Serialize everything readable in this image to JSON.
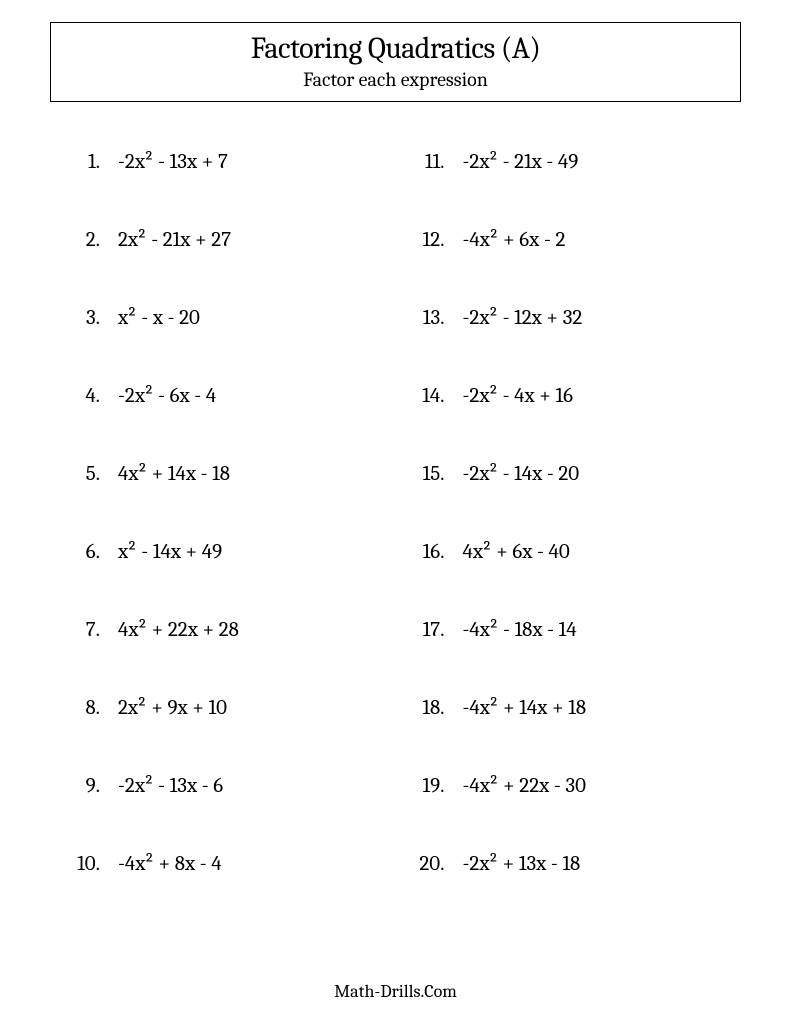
{
  "header": {
    "title": "Factoring Quadratics (A)",
    "subtitle": "Factor each expression"
  },
  "worksheet": {
    "font_family": "Cambria, Georgia, serif",
    "title_fontsize": 30,
    "subtitle_fontsize": 20,
    "problem_fontsize": 21,
    "text_color": "#000000",
    "background_color": "#ffffff",
    "border_color": "#000000",
    "columns": 2,
    "rows_per_column": 10,
    "problems_left": [
      {
        "num": "1.",
        "expr": "-2x² - 13x + 7"
      },
      {
        "num": "2.",
        "expr": "2x² - 21x + 27"
      },
      {
        "num": "3.",
        "expr": "x² - x - 20"
      },
      {
        "num": "4.",
        "expr": "-2x² - 6x - 4"
      },
      {
        "num": "5.",
        "expr": "4x² + 14x - 18"
      },
      {
        "num": "6.",
        "expr": "x² - 14x + 49"
      },
      {
        "num": "7.",
        "expr": "4x² + 22x + 28"
      },
      {
        "num": "8.",
        "expr": "2x² + 9x + 10"
      },
      {
        "num": "9.",
        "expr": "-2x² - 13x - 6"
      },
      {
        "num": "10.",
        "expr": "-4x² + 8x - 4"
      }
    ],
    "problems_right": [
      {
        "num": "11.",
        "expr": "-2x² - 21x - 49"
      },
      {
        "num": "12.",
        "expr": "-4x² + 6x - 2"
      },
      {
        "num": "13.",
        "expr": "-2x² - 12x + 32"
      },
      {
        "num": "14.",
        "expr": "-2x² - 4x + 16"
      },
      {
        "num": "15.",
        "expr": "-2x² - 14x - 20"
      },
      {
        "num": "16.",
        "expr": "4x² + 6x - 40"
      },
      {
        "num": "17.",
        "expr": "-4x² - 18x - 14"
      },
      {
        "num": "18.",
        "expr": "-4x² + 14x + 18"
      },
      {
        "num": "19.",
        "expr": "-4x² + 22x - 30"
      },
      {
        "num": "20.",
        "expr": "-2x² + 13x - 18"
      }
    ]
  },
  "footer": {
    "text": "Math-Drills.Com"
  }
}
